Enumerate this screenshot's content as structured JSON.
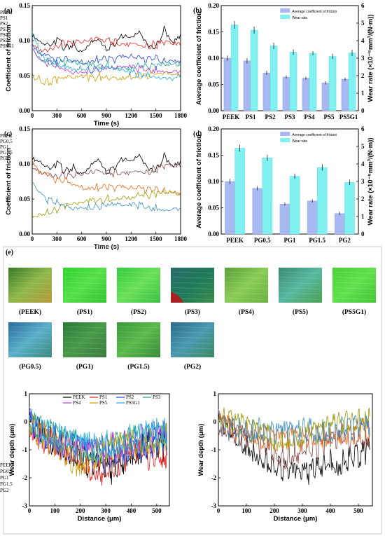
{
  "panel_labels": {
    "a": "(a)",
    "b": "(b)",
    "c": "(c)",
    "d": "(d)",
    "e": "(e)"
  },
  "image_labels": [
    "(PEEK)",
    "(PS1)",
    "(PS2)",
    "(PS3)",
    "(PS4)",
    "(PS5)",
    "(PS5G1)",
    "(PG0.5)",
    "(PG1)",
    "(PG1.5)",
    "(PG2)"
  ],
  "colors": {
    "PEEK": "#000000",
    "PS1": "#ee2222",
    "PS2": "#2244dd",
    "PS3": "#11aa88",
    "PS4": "#bb33dd",
    "PS5": "#cc9900",
    "PS5G1": "#22aadd",
    "PG0.5": "#8a4a4a",
    "PG1": "#e86b1a",
    "PG1.5": "#999900",
    "PG2": "#3b8ec8",
    "bar_cof": "#a8b8f0",
    "bar_wear": "#80f0f0"
  },
  "chart_data": [
    {
      "type": "line",
      "panel": "a",
      "xlabel": "Time (s)",
      "ylabel": "Coefficient of friction",
      "xlim": [
        0,
        1800
      ],
      "ylim": [
        0,
        0.15
      ],
      "xticks": [
        0,
        300,
        600,
        900,
        1200,
        1500,
        1800
      ],
      "yticks": [
        0.0,
        0.05,
        0.1,
        0.15
      ],
      "x": [
        0,
        100,
        200,
        300,
        400,
        500,
        600,
        700,
        800,
        900,
        1000,
        1100,
        1200,
        1300,
        1400,
        1500,
        1600,
        1700,
        1800
      ],
      "series": [
        {
          "name": "PEEK",
          "values": [
            0.105,
            0.095,
            0.09,
            0.1,
            0.09,
            0.095,
            0.085,
            0.1,
            0.105,
            0.09,
            0.095,
            0.105,
            0.1,
            0.11,
            0.09,
            0.09,
            0.115,
            0.1,
            0.11
          ]
        },
        {
          "name": "PS1",
          "values": [
            0.1,
            0.088,
            0.09,
            0.094,
            0.096,
            0.095,
            0.095,
            0.098,
            0.1,
            0.1,
            0.098,
            0.097,
            0.098,
            0.096,
            0.094,
            0.094,
            0.095,
            0.093,
            0.092
          ]
        },
        {
          "name": "PS2",
          "values": [
            0.09,
            0.078,
            0.075,
            0.074,
            0.072,
            0.074,
            0.073,
            0.072,
            0.074,
            0.073,
            0.072,
            0.074,
            0.075,
            0.073,
            0.072,
            0.074,
            0.072,
            0.074,
            0.073
          ]
        },
        {
          "name": "PS3",
          "values": [
            0.09,
            0.075,
            0.07,
            0.068,
            0.066,
            0.066,
            0.064,
            0.062,
            0.064,
            0.065,
            0.064,
            0.063,
            0.064,
            0.065,
            0.064,
            0.063,
            0.064,
            0.063,
            0.064
          ]
        },
        {
          "name": "PS4",
          "values": [
            0.085,
            0.07,
            0.068,
            0.064,
            0.06,
            0.058,
            0.057,
            0.058,
            0.06,
            0.06,
            0.058,
            0.06,
            0.06,
            0.058,
            0.059,
            0.06,
            0.06,
            0.058,
            0.058
          ]
        },
        {
          "name": "PS5",
          "values": [
            0.05,
            0.045,
            0.04,
            0.044,
            0.045,
            0.045,
            0.046,
            0.046,
            0.048,
            0.05,
            0.049,
            0.05,
            0.05,
            0.05,
            0.05,
            0.049,
            0.05,
            0.05,
            0.051
          ]
        },
        {
          "name": "PS5G1",
          "values": [
            0.11,
            0.08,
            0.072,
            0.068,
            0.065,
            0.062,
            0.06,
            0.058,
            0.058,
            0.06,
            0.056,
            0.055,
            0.054,
            0.052,
            0.053,
            0.05,
            0.049,
            0.048,
            0.046
          ]
        }
      ]
    },
    {
      "type": "bar",
      "panel": "b",
      "categories": [
        "PEEK",
        "PS1",
        "PS2",
        "PS3",
        "PS4",
        "PS5",
        "PS5G1"
      ],
      "ylabel": "Average coefficient of friction",
      "ylim": [
        0,
        0.2
      ],
      "yticks": [
        0.0,
        0.05,
        0.1,
        0.15,
        0.2
      ],
      "y2label": "Wear rate (×10⁻⁶mm³/(N·m))",
      "y2lim": [
        0,
        6
      ],
      "y2ticks": [
        0,
        1,
        2,
        3,
        4,
        5,
        6
      ],
      "legend": "top-right",
      "series": [
        {
          "name": "Average coefficient of friction",
          "axis": "left",
          "values": [
            0.1,
            0.095,
            0.072,
            0.064,
            0.062,
            0.053,
            0.06
          ],
          "errors": [
            0.005,
            0.005,
            0.004,
            0.003,
            0.003,
            0.003,
            0.003
          ]
        },
        {
          "name": "Wear rate",
          "axis": "right",
          "values": [
            4.9,
            4.6,
            3.7,
            3.35,
            3.28,
            3.1,
            3.3
          ],
          "errors": [
            0.22,
            0.2,
            0.18,
            0.15,
            0.12,
            0.15,
            0.18
          ]
        }
      ]
    },
    {
      "type": "line",
      "panel": "c",
      "xlabel": "Time (s)",
      "ylabel": "Coefficient of friction",
      "xlim": [
        0,
        1800
      ],
      "ylim": [
        0,
        0.15
      ],
      "xticks": [
        0,
        300,
        600,
        900,
        1200,
        1500,
        1800
      ],
      "yticks": [
        0.0,
        0.05,
        0.1,
        0.15
      ],
      "x": [
        0,
        100,
        200,
        300,
        400,
        500,
        600,
        700,
        800,
        900,
        1000,
        1100,
        1200,
        1300,
        1400,
        1500,
        1600,
        1700,
        1800
      ],
      "series": [
        {
          "name": "PEEK",
          "values": [
            0.105,
            0.1,
            0.09,
            0.1,
            0.09,
            0.095,
            0.087,
            0.1,
            0.11,
            0.09,
            0.095,
            0.105,
            0.1,
            0.11,
            0.09,
            0.09,
            0.11,
            0.1,
            0.105
          ]
        },
        {
          "name": "PG0.5",
          "values": [
            0.1,
            0.09,
            0.088,
            0.084,
            0.083,
            0.082,
            0.082,
            0.085,
            0.087,
            0.088,
            0.087,
            0.09,
            0.09,
            0.092,
            0.09,
            0.093,
            0.094,
            0.095,
            0.094
          ]
        },
        {
          "name": "PG1",
          "values": [
            0.1,
            0.085,
            0.082,
            0.078,
            0.075,
            0.073,
            0.07,
            0.068,
            0.067,
            0.066,
            0.065,
            0.064,
            0.063,
            0.064,
            0.062,
            0.062,
            0.063,
            0.062,
            0.061
          ]
        },
        {
          "name": "PG1.5",
          "values": [
            0.025,
            0.03,
            0.032,
            0.035,
            0.038,
            0.04,
            0.042,
            0.045,
            0.048,
            0.05,
            0.052,
            0.054,
            0.055,
            0.056,
            0.056,
            0.057,
            0.057,
            0.056,
            0.055
          ]
        },
        {
          "name": "PG2",
          "values": [
            0.07,
            0.056,
            0.048,
            0.045,
            0.042,
            0.04,
            0.04,
            0.039,
            0.04,
            0.04,
            0.04,
            0.038,
            0.039,
            0.04,
            0.038,
            0.039,
            0.038,
            0.038,
            0.038
          ]
        }
      ]
    },
    {
      "type": "bar",
      "panel": "d",
      "categories": [
        "PEEK",
        "PG0.5",
        "PG1",
        "PG1.5",
        "PG2"
      ],
      "ylabel": "Average coefficient of friction",
      "ylim": [
        0,
        0.2
      ],
      "yticks": [
        0.0,
        0.05,
        0.1,
        0.15,
        0.2
      ],
      "y2label": "Wear rate (×10⁻⁶mm³/(N·m))",
      "y2lim": [
        0,
        6
      ],
      "y2ticks": [
        0,
        1,
        2,
        3,
        4,
        5,
        6
      ],
      "legend": "top-right",
      "series": [
        {
          "name": "Average coefficient of friction",
          "axis": "left",
          "values": [
            0.1,
            0.087,
            0.057,
            0.063,
            0.039
          ],
          "errors": [
            0.005,
            0.004,
            0.003,
            0.003,
            0.003
          ]
        },
        {
          "name": "Wear rate",
          "axis": "right",
          "values": [
            4.9,
            4.35,
            3.3,
            3.8,
            2.95
          ],
          "errors": [
            0.2,
            0.18,
            0.15,
            0.18,
            0.15
          ]
        }
      ]
    },
    {
      "type": "line",
      "panel": "e-left",
      "xlabel": "Distance (μm)",
      "ylabel": "Wear depth (μm)",
      "xlim": [
        0,
        550
      ],
      "ylim": [
        -3,
        1
      ],
      "xticks": [
        0,
        100,
        200,
        300,
        400,
        500
      ],
      "yticks": [
        -3,
        -2,
        -1,
        0,
        1
      ],
      "x": [
        0,
        25,
        50,
        75,
        100,
        125,
        150,
        175,
        200,
        225,
        250,
        275,
        300,
        325,
        350,
        375,
        400,
        425,
        450,
        475,
        500,
        525,
        540
      ],
      "series": [
        {
          "name": "PEEK",
          "values": [
            0,
            -0.3,
            -0.5,
            -0.6,
            -0.7,
            -0.8,
            -1.0,
            -1.1,
            -1.3,
            -1.5,
            -1.6,
            -1.7,
            -1.8,
            -1.7,
            -1.5,
            -1.3,
            -1.2,
            -1.0,
            -0.9,
            -0.8,
            -0.7,
            -0.9,
            -1.0
          ]
        },
        {
          "name": "PS1",
          "values": [
            0,
            -0.3,
            -0.6,
            -0.7,
            -0.8,
            -0.9,
            -1.0,
            -1.2,
            -1.4,
            -1.5,
            -1.6,
            -1.7,
            -1.8,
            -1.6,
            -1.4,
            -1.3,
            -1.2,
            -1.1,
            -1.2,
            -1.3,
            -1.2,
            -1.1,
            -1.2
          ]
        },
        {
          "name": "PS2",
          "values": [
            0,
            -0.2,
            -0.4,
            -0.5,
            -0.6,
            -0.7,
            -0.8,
            -0.9,
            -1.0,
            -1.1,
            -1.2,
            -1.3,
            -1.3,
            -1.2,
            -1.1,
            -1.0,
            -0.9,
            -0.9,
            -0.8,
            -0.8,
            -0.7,
            -0.7,
            -0.6
          ]
        },
        {
          "name": "PS3",
          "values": [
            0,
            -0.2,
            -0.3,
            -0.4,
            -0.5,
            -0.6,
            -0.7,
            -0.8,
            -0.9,
            -0.9,
            -1.0,
            -1.0,
            -1.0,
            -0.9,
            -0.8,
            -0.8,
            -0.7,
            -0.6,
            -0.6,
            -0.5,
            -0.5,
            -0.4,
            -0.4
          ]
        },
        {
          "name": "PS4",
          "values": [
            0,
            -0.2,
            -0.4,
            -0.5,
            -0.6,
            -0.8,
            -0.9,
            -1.0,
            -1.0,
            -1.1,
            -1.1,
            -1.0,
            -1.0,
            -0.9,
            -0.8,
            -0.7,
            -0.7,
            -0.6,
            -0.6,
            -0.5,
            -0.5,
            -0.5,
            -0.4
          ]
        },
        {
          "name": "PS5",
          "values": [
            0,
            -0.3,
            -0.5,
            -0.7,
            -0.9,
            -1.1,
            -1.3,
            -1.5,
            -1.4,
            -1.3,
            -1.2,
            -1.1,
            -1.0,
            -1.0,
            -0.9,
            -0.9,
            -0.8,
            -0.8,
            -0.8,
            -0.7,
            -0.7,
            -0.6,
            -0.6
          ]
        },
        {
          "name": "PS5G1",
          "values": [
            0,
            -0.1,
            -0.3,
            -0.4,
            -0.5,
            -0.6,
            -0.7,
            -0.8,
            -0.8,
            -0.9,
            -0.9,
            -0.9,
            -0.8,
            -0.8,
            -0.7,
            -0.7,
            -0.6,
            -0.6,
            -0.5,
            -0.5,
            -0.4,
            -0.4,
            -0.4
          ]
        }
      ]
    },
    {
      "type": "line",
      "panel": "e-right",
      "xlabel": "Distance (μm)",
      "ylabel": "Wear depth (μm)",
      "xlim": [
        0,
        550
      ],
      "ylim": [
        -3,
        1
      ],
      "xticks": [
        0,
        100,
        200,
        300,
        400,
        500
      ],
      "yticks": [
        -3,
        -2,
        -1,
        0,
        1
      ],
      "x": [
        0,
        25,
        50,
        75,
        100,
        125,
        150,
        175,
        200,
        225,
        250,
        275,
        300,
        325,
        350,
        375,
        400,
        425,
        450,
        475,
        500,
        525,
        540
      ],
      "series": [
        {
          "name": "PEEK",
          "values": [
            0,
            -0.2,
            -0.4,
            -0.6,
            -0.8,
            -1.0,
            -1.2,
            -1.4,
            -1.6,
            -1.7,
            -1.8,
            -1.9,
            -1.9,
            -1.8,
            -1.6,
            -1.5,
            -1.4,
            -1.5,
            -1.4,
            -1.3,
            -1.2,
            -1.1,
            -1.0
          ]
        },
        {
          "name": "PG0.5",
          "values": [
            0,
            -0.2,
            -0.3,
            -0.5,
            -0.6,
            -0.7,
            -0.8,
            -1.0,
            -1.2,
            -1.3,
            -1.2,
            -1.1,
            -1.0,
            -0.9,
            -0.9,
            -0.8,
            -0.8,
            -0.7,
            -0.7,
            -0.6,
            -0.6,
            -0.5,
            -0.5
          ]
        },
        {
          "name": "PG1",
          "values": [
            0,
            -0.1,
            -0.2,
            -0.3,
            -0.4,
            -0.5,
            -0.5,
            -0.6,
            -0.6,
            -0.7,
            -0.7,
            -0.6,
            -0.6,
            -0.6,
            -0.5,
            -0.5,
            -0.5,
            -0.4,
            -0.4,
            -0.4,
            -0.3,
            -0.3,
            -0.3
          ]
        },
        {
          "name": "PG1.5",
          "values": [
            0.2,
            0.1,
            0.0,
            -0.1,
            -0.2,
            -0.3,
            -0.4,
            -0.5,
            -0.6,
            -0.6,
            -0.6,
            -0.5,
            -0.5,
            -0.4,
            -0.4,
            -0.3,
            -0.2,
            -0.1,
            0.0,
            0.1,
            0.1,
            0.2,
            0.2
          ]
        },
        {
          "name": "PG2",
          "values": [
            0,
            -0.1,
            -0.2,
            -0.2,
            -0.3,
            -0.3,
            -0.3,
            -0.4,
            -0.4,
            -0.4,
            -0.4,
            -0.4,
            -0.3,
            -0.3,
            -0.3,
            -0.3,
            -0.3,
            -0.3,
            -0.2,
            -0.2,
            -0.2,
            -0.2,
            -0.2
          ]
        }
      ]
    }
  ]
}
